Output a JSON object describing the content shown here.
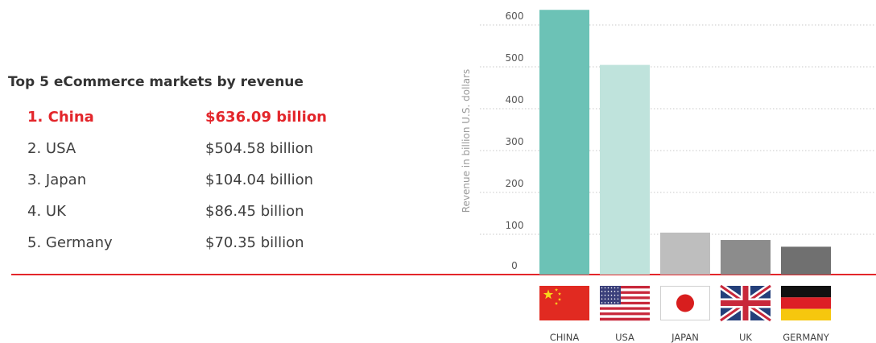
{
  "ranking": {
    "title": "Top 5 eCommerce markets by revenue",
    "items": [
      {
        "label": "1. China",
        "value": "$636.09 billion"
      },
      {
        "label": "2. USA",
        "value": "$504.58 billion"
      },
      {
        "label": "3. Japan",
        "value": "$104.04 billion"
      },
      {
        "label": "4. UK",
        "value": "$86.45 billion"
      },
      {
        "label": "5. Germany",
        "value": "$70.35 billion"
      }
    ]
  },
  "colors": {
    "highlight": "#e3262b",
    "text": "#3f3f3f",
    "bars": [
      "#6cc2b6",
      "#bfe3dc",
      "#bebebe",
      "#8c8c8c",
      "#707070"
    ]
  },
  "flags": [
    "china-flag",
    "usa-flag",
    "japan-flag",
    "uk-flag",
    "germany-flag"
  ],
  "chart_data": {
    "type": "bar",
    "categories": [
      "CHINA",
      "USA",
      "JAPAN",
      "UK",
      "GERMANY"
    ],
    "values": [
      636.09,
      504.58,
      104.04,
      86.45,
      70.35
    ],
    "title": "",
    "xlabel": "",
    "ylabel": "Revenue in billion U.S. dollars",
    "ylim": [
      0,
      600
    ],
    "yticks": [
      0,
      100,
      200,
      300,
      400,
      500,
      600
    ],
    "grid": true
  }
}
